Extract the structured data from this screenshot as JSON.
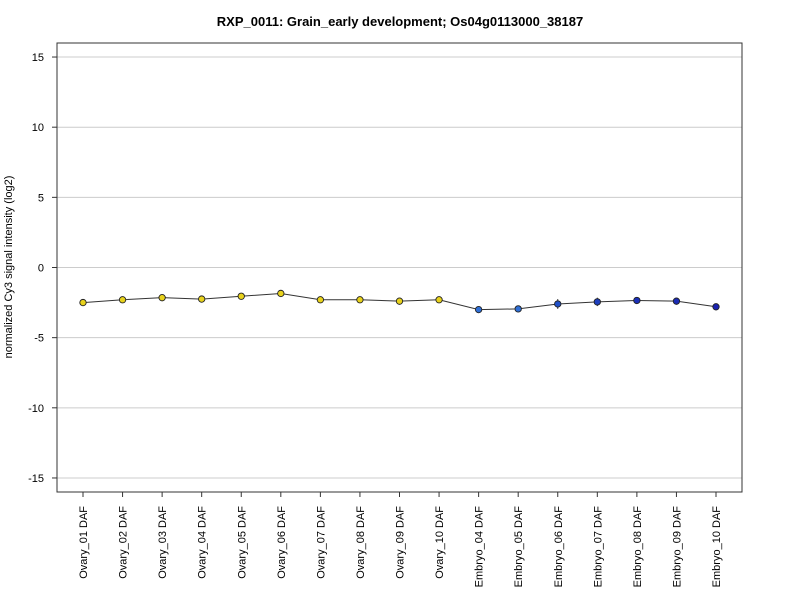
{
  "chart_data": {
    "type": "line",
    "title": "RXP_0011: Grain_early development; Os04g0113000_38187",
    "xlabel": "",
    "ylabel": "normalized Cy3 signal intensity (log2)",
    "ylim": [
      -16,
      16
    ],
    "yticks": [
      15,
      10,
      5,
      0,
      -5,
      -10,
      -15
    ],
    "grid": true,
    "categories": [
      "Ovary_01 DAF",
      "Ovary_02 DAF",
      "Ovary_03 DAF",
      "Ovary_04 DAF",
      "Ovary_05 DAF",
      "Ovary_06 DAF",
      "Ovary_07 DAF",
      "Ovary_08 DAF",
      "Ovary_09 DAF",
      "Ovary_10 DAF",
      "Embryo_04 DAF",
      "Embryo_05 DAF",
      "Embryo_06 DAF",
      "Embryo_07 DAF",
      "Embryo_08 DAF",
      "Embryo_09 DAF",
      "Embryo_10 DAF"
    ],
    "values": [
      -2.5,
      -2.3,
      -2.15,
      -2.25,
      -2.05,
      -1.85,
      -2.3,
      -2.3,
      -2.4,
      -2.3,
      -3.0,
      -2.95,
      -2.6,
      -2.45,
      -2.35,
      -2.4,
      -2.8
    ],
    "errors": [
      0.0,
      0.0,
      0.0,
      0.0,
      0.0,
      0.0,
      0.0,
      0.0,
      0.0,
      0.0,
      0.0,
      0.0,
      0.35,
      0.3,
      0.0,
      0.0,
      0.0
    ],
    "point_colors": [
      "#e8d21c",
      "#e8d21c",
      "#e8d21c",
      "#e8d21c",
      "#e8d21c",
      "#e8d21c",
      "#e8d21c",
      "#e8d21c",
      "#e8d21c",
      "#e8d21c",
      "#2f6fd6",
      "#2f6fd6",
      "#2050c8",
      "#1e3fbe",
      "#1a2fb8",
      "#1a2ab4",
      "#1a22b0"
    ],
    "line_color": "#333333",
    "grid_color": "#cccccc"
  }
}
